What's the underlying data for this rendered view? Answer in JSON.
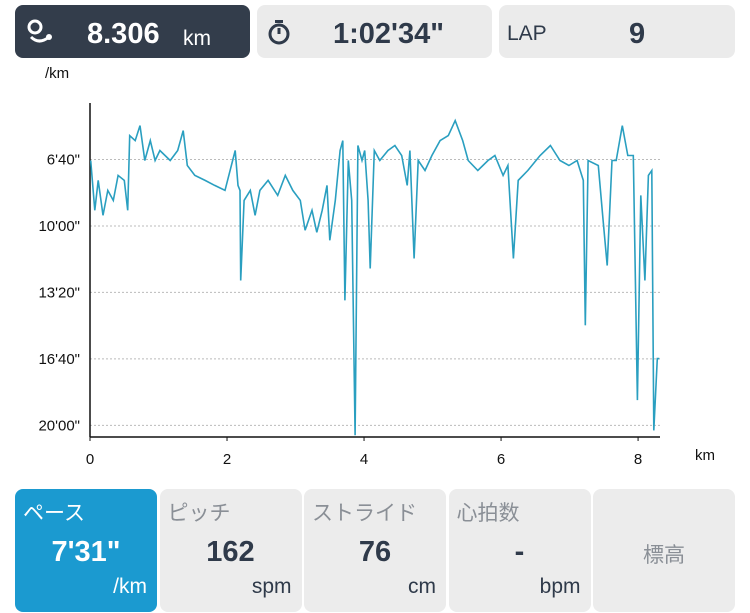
{
  "header": {
    "distance": {
      "value": "8.306",
      "unit": "km"
    },
    "time": "1:02'34\"",
    "lap": {
      "label": "LAP",
      "value": "9"
    }
  },
  "chart_data": {
    "type": "line",
    "y_label": "/km",
    "x_label": "km",
    "color": "#2a9fc0",
    "grid": true,
    "y_reversed": true,
    "xlim": [
      0,
      8.32
    ],
    "xticks": [
      0,
      2,
      4,
      6,
      8
    ],
    "ylim": [
      230,
      1235
    ],
    "yticks": [
      {
        "value": 400,
        "label": "6'40\""
      },
      {
        "value": 600,
        "label": "10'00\""
      },
      {
        "value": 800,
        "label": "13'20\""
      },
      {
        "value": 1000,
        "label": "16'40\""
      },
      {
        "value": 1200,
        "label": "20'00\""
      }
    ],
    "x": [
      0.01,
      0.07,
      0.12,
      0.19,
      0.26,
      0.34,
      0.41,
      0.5,
      0.55,
      0.58,
      0.66,
      0.73,
      0.8,
      0.88,
      0.95,
      1.02,
      1.17,
      1.28,
      1.36,
      1.42,
      1.53,
      1.68,
      1.82,
      1.97,
      2.12,
      2.16,
      2.19,
      2.2,
      2.25,
      2.34,
      2.41,
      2.48,
      2.6,
      2.74,
      2.85,
      2.96,
      3.07,
      3.14,
      3.24,
      3.31,
      3.39,
      3.46,
      3.5,
      3.58,
      3.65,
      3.69,
      3.72,
      3.77,
      3.82,
      3.87,
      3.91,
      3.97,
      4.01,
      4.06,
      4.09,
      4.15,
      4.23,
      4.35,
      4.45,
      4.55,
      4.63,
      4.67,
      4.73,
      4.79,
      4.89,
      4.99,
      5.11,
      5.23,
      5.33,
      5.44,
      5.52,
      5.66,
      5.81,
      5.91,
      6.03,
      6.1,
      6.18,
      6.25,
      6.39,
      6.57,
      6.72,
      6.86,
      6.99,
      7.11,
      7.2,
      7.23,
      7.27,
      7.42,
      7.49,
      7.55,
      7.62,
      7.68,
      7.77,
      7.85,
      7.93,
      7.99,
      8.04,
      8.1,
      8.15,
      8.2,
      8.23,
      8.28,
      8.31
    ],
    "values": [
      403,
      553,
      463,
      568,
      493,
      523,
      448,
      463,
      553,
      328,
      343,
      298,
      403,
      343,
      403,
      373,
      403,
      373,
      313,
      418,
      448,
      463,
      478,
      493,
      373,
      478,
      493,
      764,
      523,
      493,
      568,
      493,
      463,
      508,
      448,
      493,
      523,
      613,
      553,
      619,
      553,
      478,
      643,
      523,
      373,
      343,
      824,
      403,
      523,
      1230,
      358,
      403,
      373,
      523,
      728,
      373,
      403,
      373,
      358,
      388,
      478,
      373,
      698,
      403,
      433,
      388,
      343,
      328,
      283,
      343,
      403,
      433,
      403,
      388,
      448,
      418,
      698,
      463,
      433,
      388,
      358,
      403,
      418,
      403,
      463,
      899,
      403,
      418,
      583,
      719,
      403,
      403,
      298,
      388,
      388,
      1124,
      508,
      764,
      448,
      433,
      1215,
      999,
      999
    ]
  },
  "stats": [
    {
      "label": "ペース",
      "value": "7'31\"",
      "unit": "/km"
    },
    {
      "label": "ピッチ",
      "value": 162,
      "unit": "spm"
    },
    {
      "label": "ストライド",
      "value": 76,
      "unit": "cm"
    },
    {
      "label": "心拍数",
      "value": "-",
      "unit": "bpm"
    },
    {
      "label": "標高"
    }
  ]
}
